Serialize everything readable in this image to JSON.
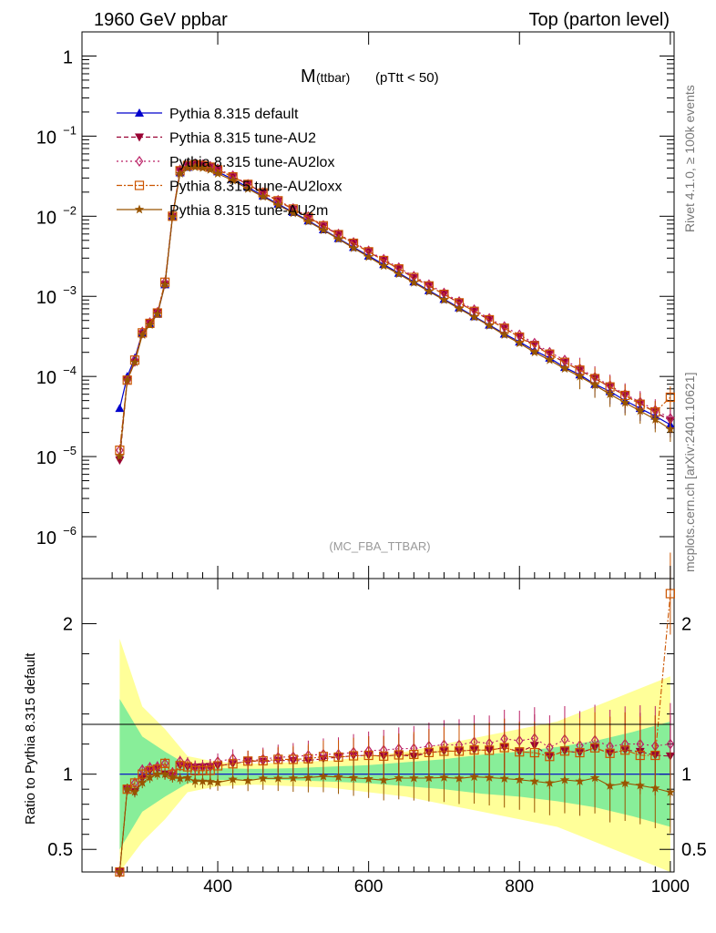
{
  "header": {
    "left": "1960 GeV ppbar",
    "right": "Top (parton level)"
  },
  "side_labels": {
    "rivet": "Rivet 4.1.0, ≥ 100k events",
    "mcplots": "mcplots.cern.ch [arXiv:2401.10621]"
  },
  "chart_data": {
    "type": "line",
    "title": "M",
    "title_sub": "(ttbar)",
    "title_cut": "(pTtt < 50)",
    "watermark": "(MC_FBA_TTBAR)",
    "xlabel": "",
    "ylabel_ratio": "Ratio to Pythia 8.315 default",
    "xlim": [
      220,
      1005
    ],
    "ylim_main": [
      3e-07,
      2
    ],
    "ylim_ratio": [
      0.35,
      2.3
    ],
    "x_ticks": [
      "400",
      "600",
      "800",
      "1000"
    ],
    "x_tick_values": [
      400,
      600,
      800,
      1000
    ],
    "y_ticks_main": [
      {
        "base": "10",
        "exp": "−6",
        "value": 1e-06
      },
      {
        "base": "10",
        "exp": "−5",
        "value": 1e-05
      },
      {
        "base": "10",
        "exp": "−4",
        "value": 0.0001
      },
      {
        "base": "10",
        "exp": "−3",
        "value": 0.001
      },
      {
        "base": "10",
        "exp": "−2",
        "value": 0.01
      },
      {
        "base": "10",
        "exp": "−1",
        "value": 0.1
      },
      {
        "base": "1",
        "exp": "",
        "value": 1
      }
    ],
    "y_ticks_ratio": [
      {
        "label": "0.5",
        "value": 0.5
      },
      {
        "label": "1",
        "value": 1
      },
      {
        "label": "2",
        "value": 2
      }
    ],
    "x": [
      270,
      280,
      290,
      300,
      310,
      320,
      330,
      340,
      350,
      360,
      370,
      380,
      390,
      400,
      420,
      440,
      460,
      480,
      500,
      520,
      540,
      560,
      580,
      600,
      620,
      640,
      660,
      680,
      700,
      720,
      740,
      760,
      780,
      800,
      820,
      840,
      860,
      880,
      900,
      920,
      940,
      960,
      980,
      1000
    ],
    "series": [
      {
        "name": "Pythia 8.315 default",
        "color": "#0000cc",
        "dash": "",
        "marker": "triangle-up",
        "values": [
          4e-05,
          0.0001,
          0.00017,
          0.00035,
          0.00045,
          0.0006,
          0.0014,
          0.01,
          0.035,
          0.041,
          0.043,
          0.042,
          0.04,
          0.036,
          0.029,
          0.023,
          0.018,
          0.0142,
          0.0112,
          0.0088,
          0.0068,
          0.0053,
          0.0041,
          0.0032,
          0.0025,
          0.00195,
          0.00152,
          0.00118,
          0.00092,
          0.00072,
          0.00056,
          0.00044,
          0.00034,
          0.00027,
          0.00021,
          0.00017,
          0.00013,
          0.000105,
          8e-05,
          6.5e-05,
          5e-05,
          4e-05,
          3.2e-05,
          2.5e-05
        ]
      },
      {
        "name": "Pythia 8.315 tune-AU2",
        "color": "#990033",
        "dash": "5,3",
        "marker": "triangle-down",
        "values": [
          9e-06,
          9e-05,
          0.00015,
          0.00034,
          0.00046,
          0.00062,
          0.0014,
          0.0099,
          0.037,
          0.043,
          0.045,
          0.044,
          0.042,
          0.038,
          0.031,
          0.025,
          0.0195,
          0.0155,
          0.0122,
          0.0096,
          0.0075,
          0.0059,
          0.0046,
          0.0036,
          0.0028,
          0.0022,
          0.0017,
          0.00135,
          0.00106,
          0.00083,
          0.00065,
          0.00051,
          0.0004,
          0.00031,
          0.00025,
          0.00019,
          0.00015,
          0.00012,
          9.4e-05,
          7.4e-05,
          5.8e-05,
          4.6e-05,
          3.6e-05,
          2.8e-05
        ]
      },
      {
        "name": "Pythia 8.315 tune-AU2lox",
        "color": "#bb2266",
        "dash": "2,3",
        "marker": "diamond",
        "values": [
          1.2e-05,
          9e-05,
          0.00016,
          0.00036,
          0.00047,
          0.00063,
          0.0015,
          0.0101,
          0.038,
          0.044,
          0.045,
          0.044,
          0.042,
          0.039,
          0.032,
          0.025,
          0.0198,
          0.0158,
          0.0125,
          0.0099,
          0.0077,
          0.006,
          0.0047,
          0.0037,
          0.0029,
          0.00228,
          0.00178,
          0.0014,
          0.0011,
          0.00086,
          0.00068,
          0.00053,
          0.00042,
          0.00033,
          0.00026,
          0.0002,
          0.00016,
          0.000125,
          9.8e-05,
          7.7e-05,
          6e-05,
          4.8e-05,
          3.8e-05,
          3e-05
        ]
      },
      {
        "name": "Pythia 8.315 tune-AU2loxx",
        "color": "#cc5500",
        "dash": "6,2,2,2",
        "marker": "square",
        "values": [
          1.2e-05,
          9e-05,
          0.00016,
          0.00035,
          0.00046,
          0.00062,
          0.0015,
          0.01,
          0.037,
          0.043,
          0.044,
          0.043,
          0.041,
          0.038,
          0.031,
          0.025,
          0.0196,
          0.0156,
          0.0123,
          0.0097,
          0.0076,
          0.0059,
          0.0046,
          0.0036,
          0.0028,
          0.0022,
          0.00172,
          0.00135,
          0.00106,
          0.00083,
          0.00065,
          0.00051,
          0.0004,
          0.00031,
          0.00024,
          0.00019,
          0.00015,
          0.00012,
          9.4e-05,
          7.4e-05,
          5.8e-05,
          4.5e-05,
          3.6e-05,
          5.5e-05
        ]
      },
      {
        "name": "Pythia 8.315 tune-AU2m",
        "color": "#995500",
        "dash": "",
        "marker": "star",
        "values": [
          1e-05,
          9e-05,
          0.00015,
          0.00033,
          0.00044,
          0.0006,
          0.0014,
          0.0098,
          0.034,
          0.04,
          0.041,
          0.04,
          0.038,
          0.034,
          0.028,
          0.022,
          0.0175,
          0.0138,
          0.0109,
          0.0086,
          0.0067,
          0.0052,
          0.004,
          0.0031,
          0.0024,
          0.0019,
          0.00148,
          0.00115,
          0.0009,
          0.0007,
          0.00055,
          0.00043,
          0.00033,
          0.00026,
          0.0002,
          0.00016,
          0.000125,
          0.0001,
          7.8e-05,
          6e-05,
          4.7e-05,
          3.7e-05,
          2.9e-05,
          2.2e-05
        ]
      }
    ],
    "ratio_band_x": [
      270,
      300,
      330,
      360,
      400,
      450,
      500,
      550,
      600,
      650,
      700,
      750,
      800,
      850,
      900,
      950,
      1000
    ],
    "ratio_band_yellow": [
      0.9,
      0.45,
      0.3,
      0.12,
      0.08,
      0.07,
      0.08,
      0.09,
      0.12,
      0.15,
      0.2,
      0.25,
      0.3,
      0.35,
      0.45,
      0.55,
      0.65
    ],
    "ratio_band_green": [
      0.5,
      0.25,
      0.15,
      0.06,
      0.04,
      0.035,
      0.04,
      0.05,
      0.06,
      0.08,
      0.1,
      0.13,
      0.15,
      0.18,
      0.22,
      0.28,
      0.35
    ]
  }
}
